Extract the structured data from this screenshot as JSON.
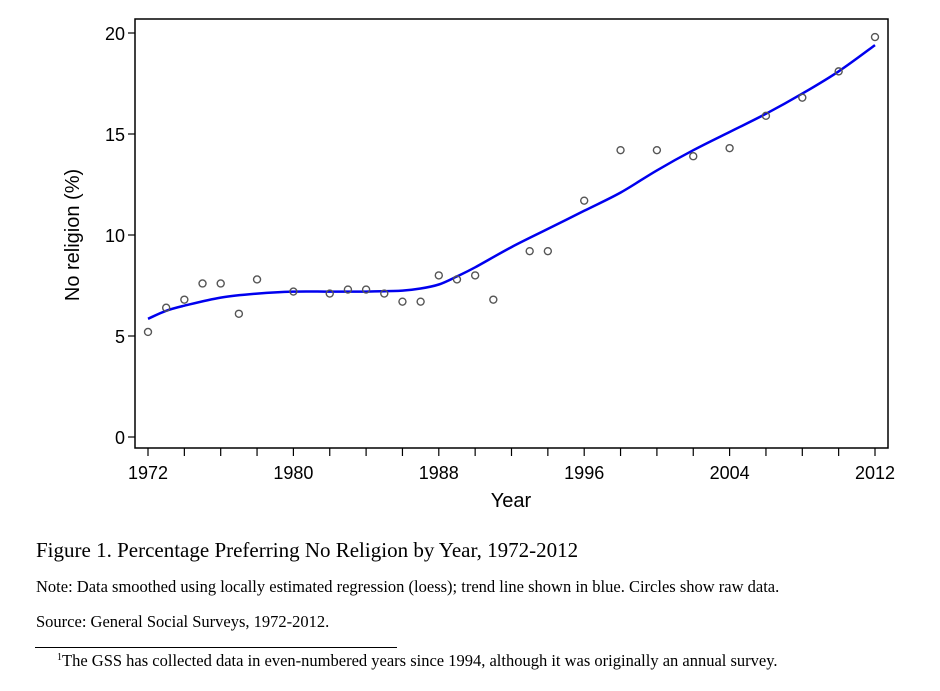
{
  "chart_data": {
    "type": "scatter",
    "title": "",
    "xlabel": "Year",
    "ylabel": "No religion (%)",
    "xlim": [
      1972,
      2012
    ],
    "ylim": [
      0,
      20
    ],
    "x_ticks": [
      1972,
      1980,
      1988,
      1996,
      2004,
      2012
    ],
    "x_tick_labels": [
      "1972",
      "1980",
      "1988",
      "1996",
      "2004",
      "2012"
    ],
    "x_minor_ticks_every": 2,
    "y_ticks": [
      0,
      5,
      10,
      15,
      20
    ],
    "y_tick_labels": [
      "0",
      "5",
      "10",
      "15",
      "20"
    ],
    "grid": false,
    "legend": "none",
    "series": [
      {
        "name": "Raw data",
        "kind": "scatter",
        "marker": "hollow-circle",
        "color": "#555555",
        "x": [
          1972,
          1973,
          1974,
          1975,
          1976,
          1977,
          1978,
          1980,
          1982,
          1983,
          1984,
          1985,
          1986,
          1987,
          1988,
          1989,
          1990,
          1991,
          1993,
          1994,
          1996,
          1998,
          2000,
          2002,
          2004,
          2006,
          2008,
          2010,
          2012
        ],
        "y": [
          5.2,
          6.4,
          6.8,
          7.6,
          7.6,
          6.1,
          7.8,
          7.2,
          7.1,
          7.3,
          7.3,
          7.1,
          6.7,
          6.7,
          8.0,
          7.8,
          8.0,
          6.8,
          9.2,
          9.2,
          11.7,
          14.2,
          14.2,
          13.9,
          14.3,
          15.9,
          16.8,
          18.1,
          19.8
        ]
      },
      {
        "name": "Loess trend",
        "kind": "line",
        "color": "#0000ee",
        "x": [
          1972,
          1973,
          1974,
          1976,
          1978,
          1980,
          1982,
          1984,
          1986,
          1987,
          1988,
          1989,
          1990,
          1992,
          1994,
          1996,
          1998,
          2000,
          2002,
          2004,
          2006,
          2008,
          2010,
          2012
        ],
        "y": [
          5.85,
          6.25,
          6.5,
          6.9,
          7.1,
          7.2,
          7.2,
          7.2,
          7.25,
          7.35,
          7.55,
          7.95,
          8.4,
          9.4,
          10.3,
          11.2,
          12.1,
          13.2,
          14.2,
          15.1,
          16.0,
          17.0,
          18.1,
          19.4
        ]
      }
    ]
  },
  "caption": {
    "title": "Figure 1. Percentage Preferring No Religion by Year, 1972-2012",
    "note": "Note: Data smoothed using locally estimated regression (loess); trend line shown in blue. Circles show raw data.",
    "source": "Source: General Social Surveys, 1972-2012."
  },
  "footnote": {
    "marker": "1",
    "text": "The GSS has collected data in even-numbered years since 1994, although it was originally an annual survey."
  }
}
